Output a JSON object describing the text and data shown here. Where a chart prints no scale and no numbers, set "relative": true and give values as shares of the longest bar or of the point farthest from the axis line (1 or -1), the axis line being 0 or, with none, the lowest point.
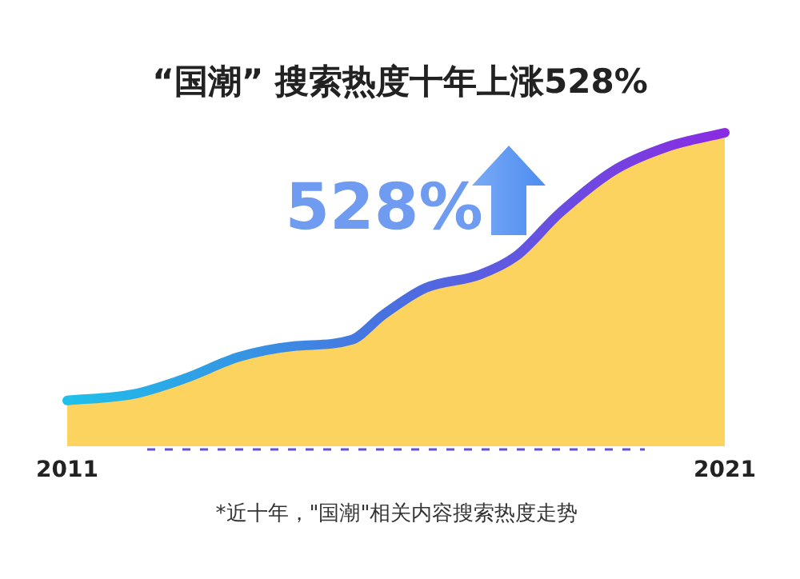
{
  "chart_data": {
    "type": "area",
    "title": "“国潮” 搜索热度十年上涨528%",
    "relative": true,
    "x": [
      2011,
      2012,
      2012.8,
      2013.61,
      2014.43,
      2015.32,
      2015.81,
      2016.45,
      2017.27,
      2017.83,
      2018.48,
      2019.3,
      2020.11,
      2021
    ],
    "xlim": [
      2011,
      2021
    ],
    "xticks": [
      2011,
      2021
    ],
    "series": [
      {
        "color": "#fcd35f",
        "values": [
          0.146,
          0.166,
          0.217,
          0.285,
          0.319,
          0.339,
          0.42,
          0.505,
          0.547,
          0.607,
          0.742,
          0.878,
          0.954,
          1.0
        ]
      }
    ],
    "annotations": [
      "528%",
      "*近十年，\"国潮\"相关内容搜索热度走势"
    ]
  }
}
